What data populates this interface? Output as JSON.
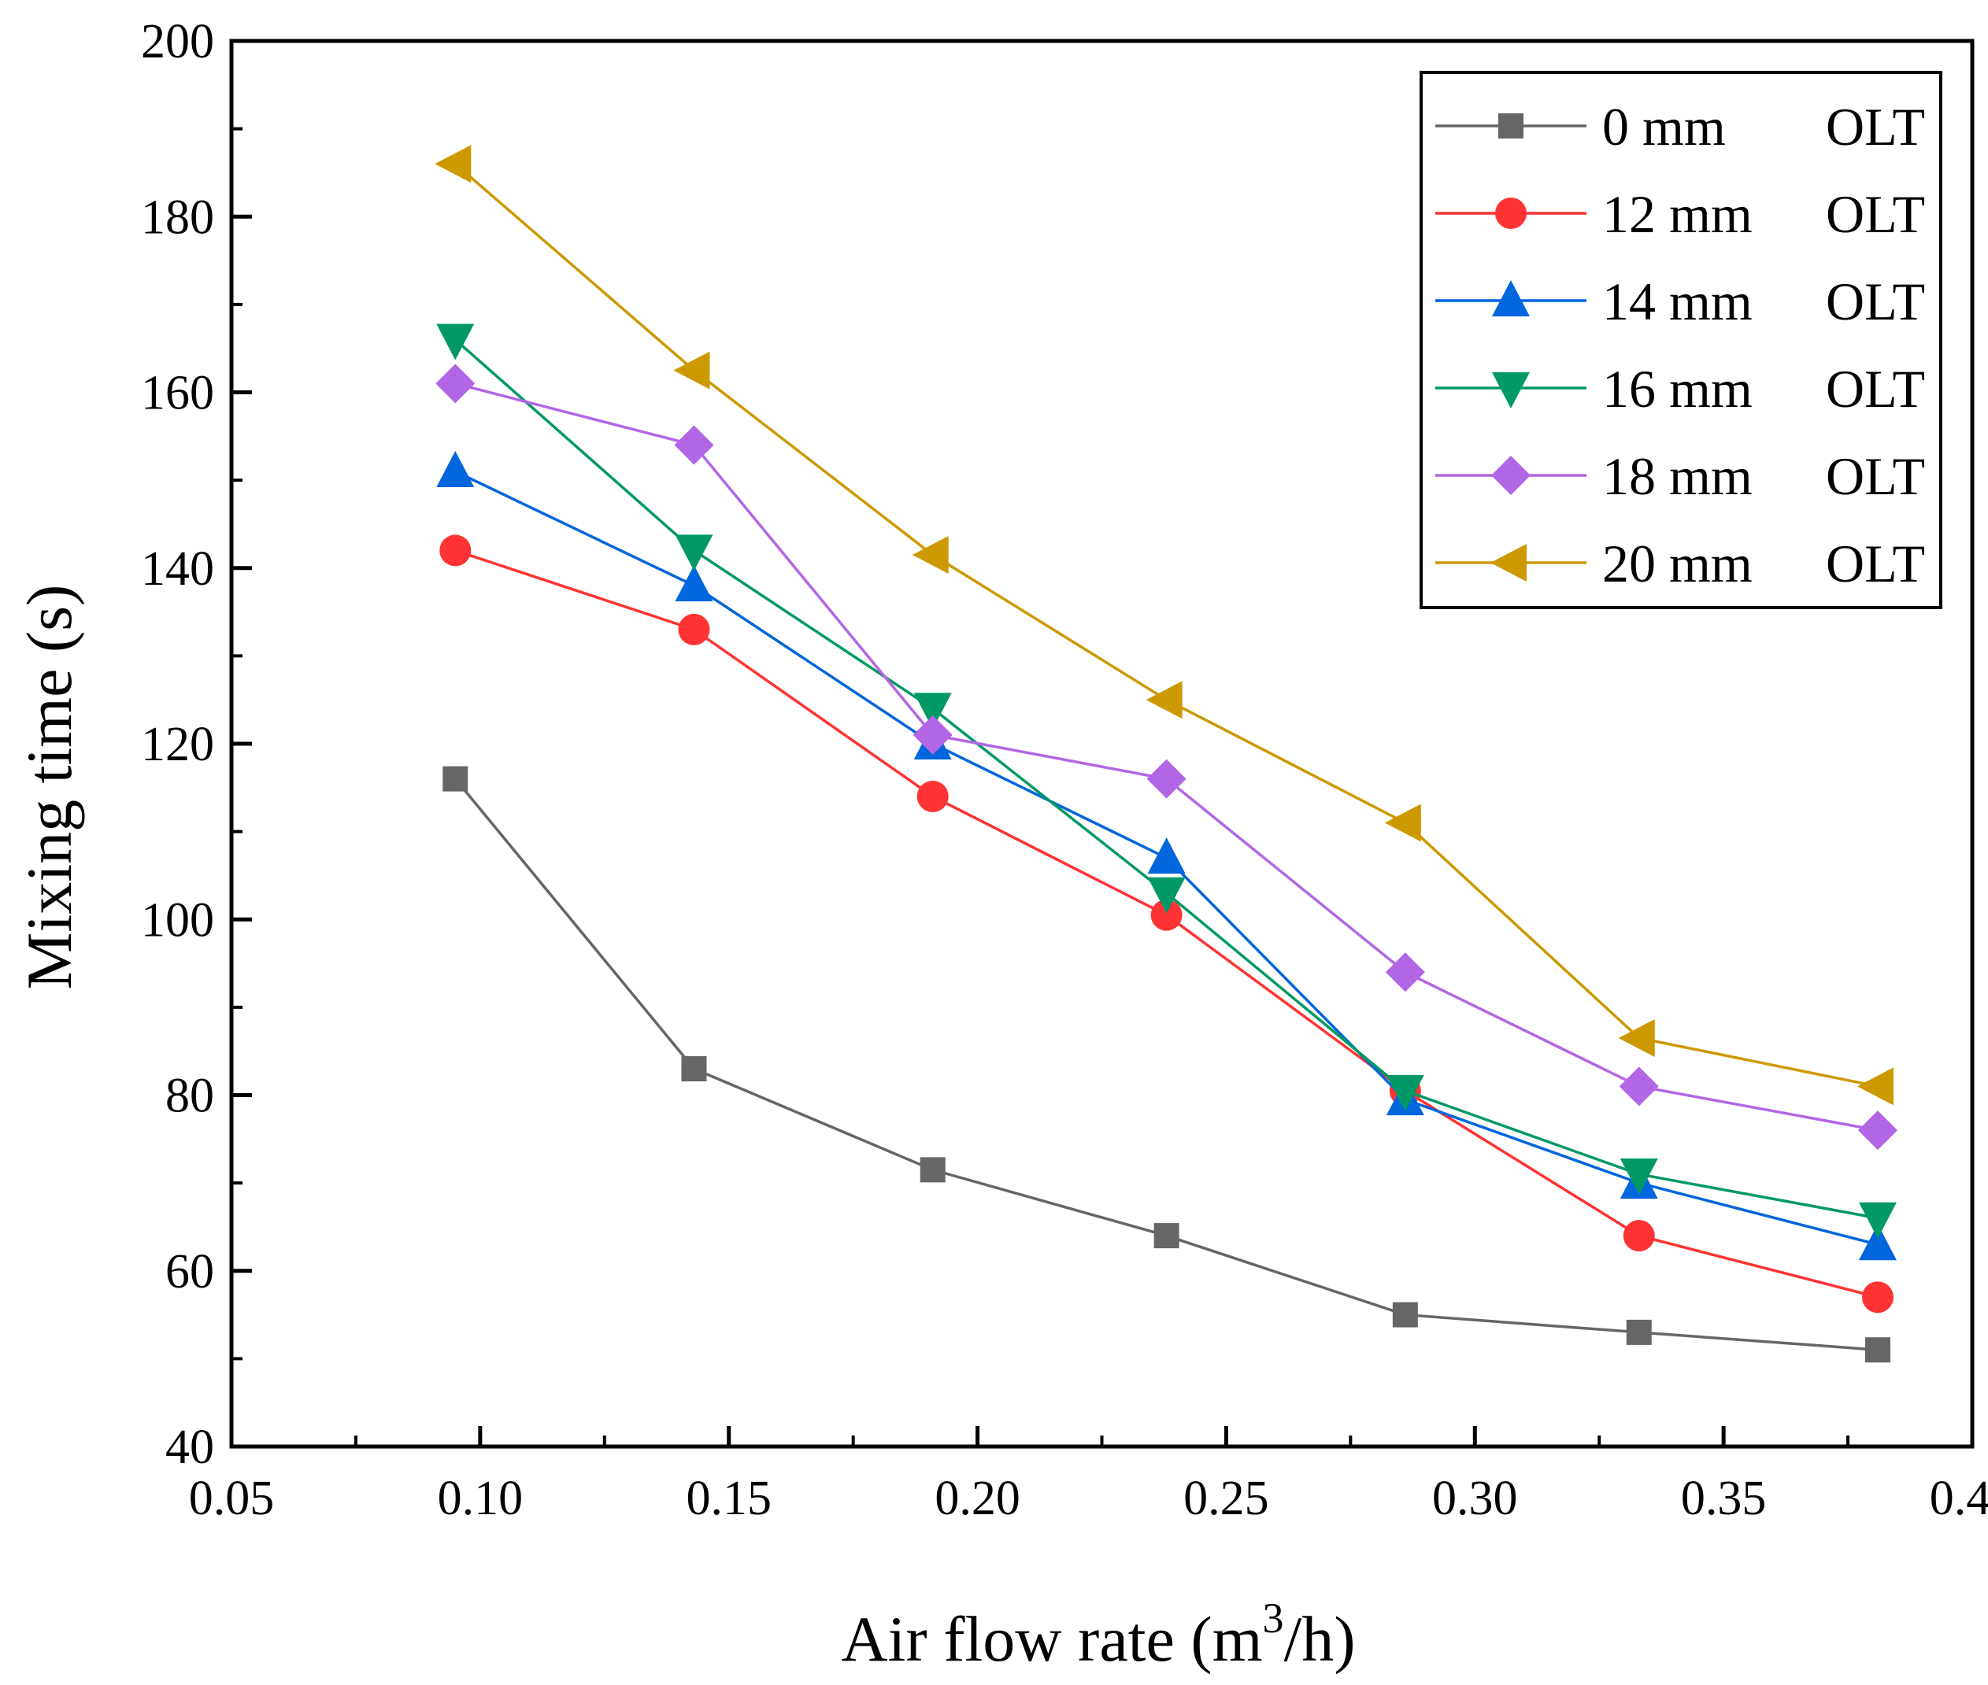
{
  "chart_data": {
    "type": "line",
    "title": "",
    "xlabel": "Air flow rate (m",
    "xlabel_sup": "3",
    "xlabel_tail": "/h)",
    "ylabel": "Mixing time (s)",
    "xlim": [
      0.05,
      0.4
    ],
    "ylim": [
      40,
      200
    ],
    "xticks": [
      "0.05",
      "0.10",
      "0.15",
      "0.20",
      "0.25",
      "0.30",
      "0.35",
      "0.40"
    ],
    "yticks": [
      "40",
      "60",
      "80",
      "100",
      "120",
      "140",
      "160",
      "180",
      "200"
    ],
    "legend_position": "top-right",
    "x": [
      0.095,
      0.143,
      0.191,
      0.238,
      0.286,
      0.333,
      0.381
    ],
    "series": [
      {
        "name": "0 mm",
        "suffix": "OLT",
        "marker": "square",
        "color": "#666666",
        "values": [
          116,
          83,
          71.5,
          64,
          55,
          53,
          51
        ]
      },
      {
        "name": "12 mm",
        "suffix": "OLT",
        "marker": "circle",
        "color": "#FF3333",
        "values": [
          142,
          133,
          114,
          100.5,
          80.5,
          64,
          57
        ]
      },
      {
        "name": "14 mm",
        "suffix": "OLT",
        "marker": "triangle-up",
        "color": "#0066DD",
        "values": [
          151,
          138,
          120,
          107,
          79.5,
          70,
          63
        ]
      },
      {
        "name": "16 mm",
        "suffix": "OLT",
        "marker": "triangle-down",
        "color": "#009966",
        "values": [
          166,
          142,
          124,
          103,
          80.5,
          71,
          66
        ]
      },
      {
        "name": "18 mm",
        "suffix": "OLT",
        "marker": "diamond",
        "color": "#B266E6",
        "values": [
          161,
          154,
          121,
          116,
          94,
          81,
          76
        ]
      },
      {
        "name": "20 mm",
        "suffix": "OLT",
        "marker": "triangle-left",
        "color": "#CC9900",
        "values": [
          186,
          162.5,
          141.5,
          125,
          111,
          86.5,
          81
        ]
      }
    ]
  }
}
